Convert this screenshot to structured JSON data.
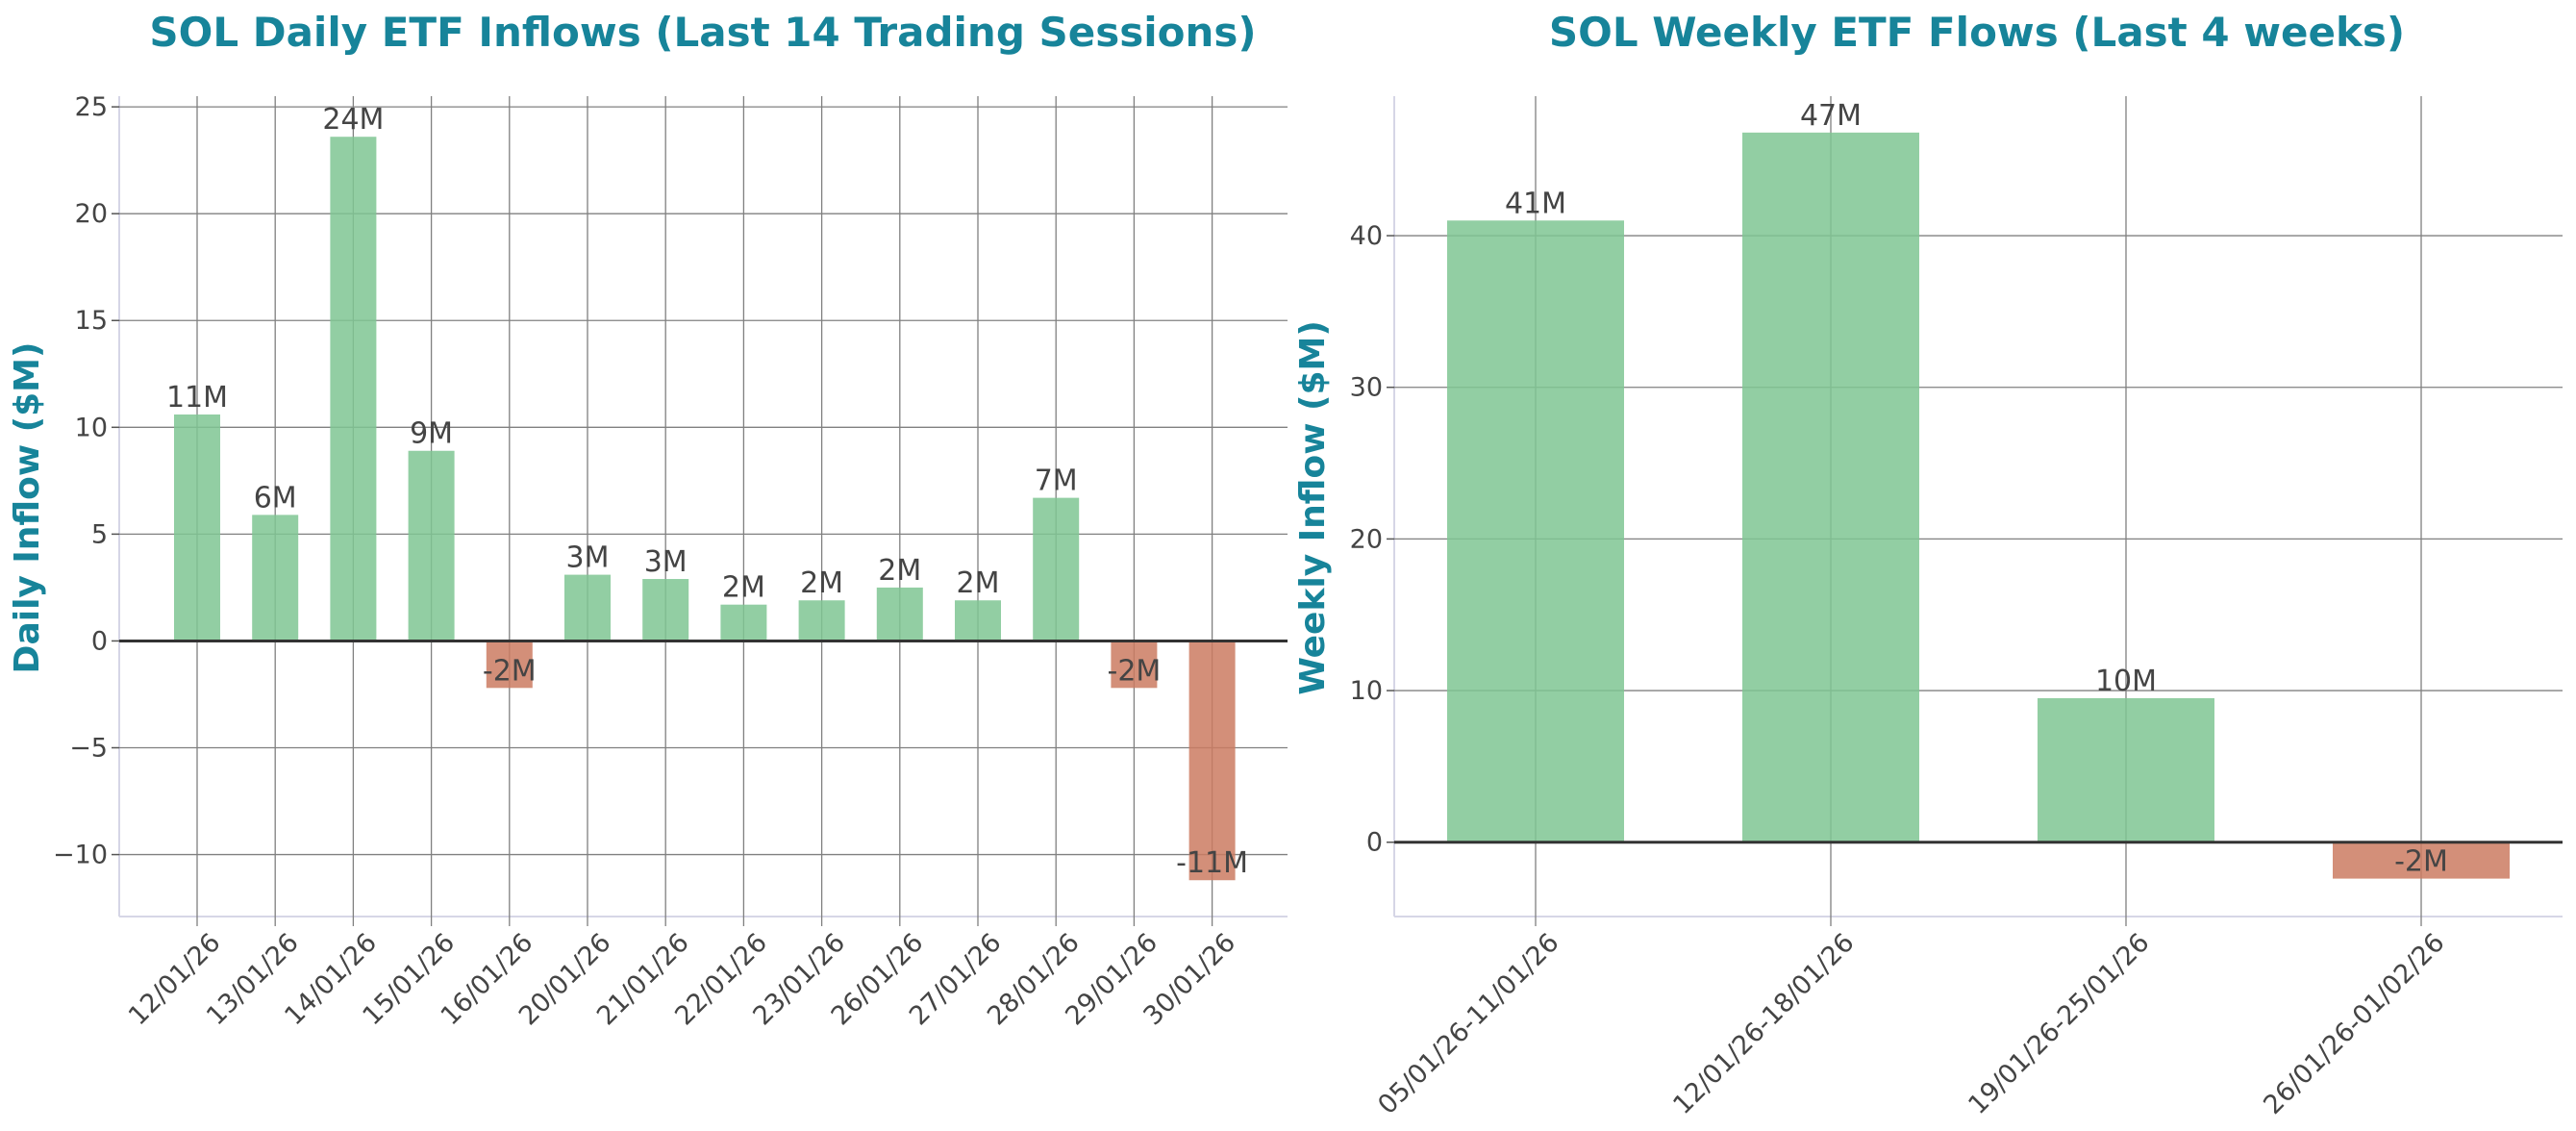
{
  "theme": {
    "title_color": "#17849a",
    "positive_color": "#7fc693",
    "negative_color": "#cb7b62",
    "grid_color": "#808080",
    "zero_line_color": "#333333",
    "text_color": "#444444"
  },
  "chart_data": [
    {
      "type": "bar",
      "title": "SOL Daily ETF Inflows (Last 14 Trading Sessions)",
      "xlabel": "",
      "ylabel": "Daily Inflow ($M)",
      "categories": [
        "12/01/26",
        "13/01/26",
        "14/01/26",
        "15/01/26",
        "16/01/26",
        "20/01/26",
        "21/01/26",
        "22/01/26",
        "23/01/26",
        "26/01/26",
        "27/01/26",
        "28/01/26",
        "29/01/26",
        "30/01/26"
      ],
      "values": [
        10.6,
        5.9,
        23.6,
        8.9,
        -2.2,
        3.1,
        2.9,
        1.7,
        1.9,
        2.5,
        1.9,
        6.7,
        -2.2,
        -11.2
      ],
      "labels": [
        "11M",
        "6M",
        "24M",
        "9M",
        "-2M",
        "3M",
        "3M",
        "2M",
        "2M",
        "2M",
        "2M",
        "7M",
        "-2M",
        "-11M"
      ],
      "ylim": [
        -12.9,
        25.5
      ],
      "yticks": [
        -10,
        -5,
        0,
        5,
        10,
        15,
        20,
        25
      ],
      "ytick_labels": [
        "−10",
        "−5",
        "0",
        "5",
        "10",
        "15",
        "20",
        "25"
      ],
      "grid": true,
      "legend": "none"
    },
    {
      "type": "bar",
      "title": "SOL Weekly ETF Flows (Last 4 weeks)",
      "xlabel": "",
      "ylabel": "Weekly Inflow ($M)",
      "categories": [
        "05/01/26-11/01/26",
        "12/01/26-18/01/26",
        "19/01/26-25/01/26",
        "26/01/26-01/02/26"
      ],
      "values": [
        41.0,
        46.8,
        9.5,
        -2.4
      ],
      "labels": [
        "41M",
        "47M",
        "10M",
        "-2M"
      ],
      "ylim": [
        -4.9,
        49.2
      ],
      "yticks": [
        0,
        10,
        20,
        30,
        40
      ],
      "ytick_labels": [
        "0",
        "10",
        "20",
        "30",
        "40"
      ],
      "grid": true,
      "legend": "none"
    }
  ]
}
